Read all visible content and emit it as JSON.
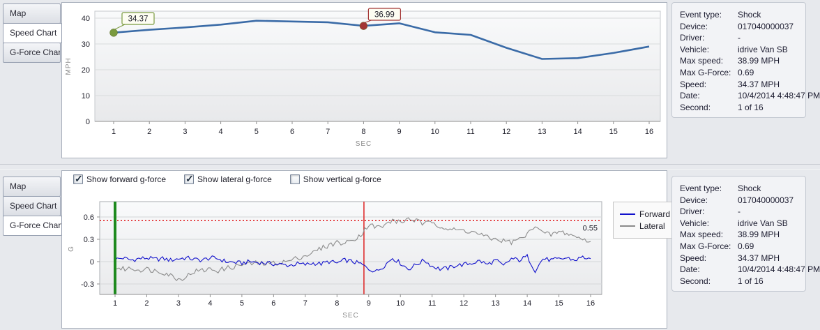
{
  "window": {
    "bg": "#e7e9ed",
    "accent_blue": "#3a6ba7"
  },
  "tabs": [
    "Map",
    "Speed Chart",
    "G-Force Chart"
  ],
  "top_panel": {
    "selected_tab": "Speed Chart"
  },
  "bottom_panel": {
    "selected_tab": "G-Force Chart",
    "checkboxes": [
      {
        "label": "Show forward g-force",
        "checked": true
      },
      {
        "label": "Show lateral g-force",
        "checked": true
      },
      {
        "label": "Show vertical g-force",
        "checked": false
      }
    ]
  },
  "event_info": {
    "rows": [
      {
        "label": "Event type:",
        "value": "Shock"
      },
      {
        "label": "Device:",
        "value": "017040000037"
      },
      {
        "label": "Driver:",
        "value": "-"
      },
      {
        "label": "Vehicle:",
        "value": "idrive Van SB"
      },
      {
        "label": "Max speed:",
        "value": "38.99 MPH"
      },
      {
        "label": "Max G-Force:",
        "value": "0.69"
      },
      {
        "label": "Speed:",
        "value": "34.37 MPH"
      },
      {
        "label": "Date:",
        "value": "10/4/2014 4:48:47 PM"
      },
      {
        "label": "Second:",
        "value": "1 of 16"
      }
    ]
  },
  "chart_data": [
    {
      "id": "speed",
      "type": "line",
      "xlabel": "SEC",
      "ylabel": "MPH",
      "x": [
        1,
        2,
        3,
        4,
        5,
        6,
        7,
        8,
        9,
        10,
        11,
        12,
        13,
        14,
        15,
        16
      ],
      "ylim": [
        0,
        40
      ],
      "yticks": [
        0,
        10,
        20,
        30,
        40
      ],
      "grid": "horizontal",
      "series": [
        {
          "name": "Speed",
          "color": "#3a6ba7",
          "values": [
            34.37,
            35.5,
            36.4,
            37.5,
            38.99,
            38.7,
            38.4,
            36.99,
            38.0,
            34.5,
            33.5,
            28.5,
            24.2,
            24.5,
            26.5,
            29.0
          ]
        }
      ],
      "markers": [
        {
          "x": 1,
          "value": 34.37,
          "label": "34.37",
          "color": "#7a9a3f"
        },
        {
          "x": 8,
          "value": 36.99,
          "label": "36.99",
          "color": "#a33535"
        }
      ]
    },
    {
      "id": "gforce",
      "type": "line",
      "xlabel": "SEC",
      "ylabel": "G",
      "x_start": 1,
      "x_step": 0.25,
      "xticks": [
        1,
        2,
        3,
        4,
        5,
        6,
        7,
        8,
        9,
        10,
        11,
        12,
        13,
        14,
        15,
        16
      ],
      "ylim": [
        -0.45,
        0.72
      ],
      "yticks": [
        -0.3,
        0,
        0.3,
        0.6
      ],
      "grid": "horizontal",
      "series": [
        {
          "name": "Forward",
          "color": "#1212cc",
          "values": [
            0.03,
            0.05,
            0.02,
            0.04,
            0.05,
            0.03,
            0.04,
            0.02,
            0.04,
            0.05,
            0.03,
            0.02,
            0.05,
            0.04,
            0.0,
            -0.01,
            -0.02,
            0.0,
            -0.01,
            -0.02,
            -0.03,
            -0.04,
            -0.05,
            -0.03,
            -0.04,
            -0.02,
            -0.03,
            0.0,
            -0.02,
            0.02,
            0.0,
            -0.03,
            -0.1,
            -0.13,
            -0.05,
            0.05,
            -0.02,
            -0.1,
            -0.04,
            0.02,
            -0.06,
            -0.1,
            -0.09,
            -0.05,
            -0.04,
            -0.02,
            0.01,
            -0.04,
            0.02,
            -0.06,
            0.04,
            0.02,
            0.07,
            -0.12,
            0.04,
            0.02,
            0.03,
            0.05,
            0.02,
            0.06,
            0.04
          ]
        },
        {
          "name": "Lateral",
          "color": "#8c8c8c",
          "values": [
            -0.08,
            -0.1,
            -0.09,
            -0.11,
            -0.1,
            -0.12,
            -0.14,
            -0.18,
            -0.24,
            -0.2,
            -0.13,
            -0.12,
            -0.1,
            -0.12,
            -0.09,
            -0.07,
            -0.04,
            -0.03,
            -0.02,
            -0.03,
            -0.02,
            -0.01,
            0.01,
            0.05,
            0.08,
            0.12,
            0.18,
            0.22,
            0.26,
            0.24,
            0.3,
            0.36,
            0.5,
            0.46,
            0.48,
            0.56,
            0.52,
            0.58,
            0.55,
            0.5,
            0.54,
            0.48,
            0.44,
            0.42,
            0.42,
            0.4,
            0.37,
            0.32,
            0.3,
            0.28,
            0.26,
            0.3,
            0.36,
            0.5,
            0.38,
            0.36,
            0.4,
            0.38,
            0.34,
            0.3,
            0.27
          ]
        }
      ],
      "noise_amp": [
        0.03,
        0.035
      ],
      "threshold": {
        "value": 0.55,
        "label": "0.55",
        "color": "#dd0000",
        "style": "dotted"
      },
      "vlines": [
        {
          "x": 1,
          "color": "#1e8a1e",
          "width": 4
        },
        {
          "x": 8.85,
          "color": "#dd2222",
          "width": 1.5
        }
      ],
      "legend": {
        "position": "right-top",
        "entries": [
          {
            "label": "Forward",
            "color": "#1212cc"
          },
          {
            "label": "Lateral",
            "color": "#8c8c8c"
          }
        ]
      }
    }
  ]
}
